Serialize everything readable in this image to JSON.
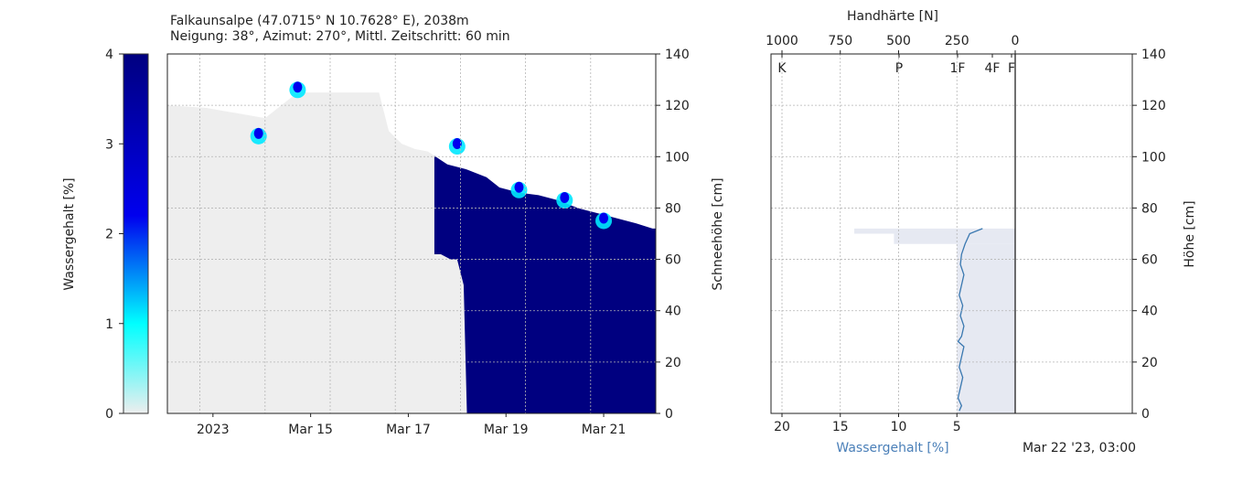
{
  "chart_data": [
    {
      "type": "heatmap",
      "title": "Falkaunsalpe (47.0715° N 10.7628° E), 2038m",
      "subtitle": "Neigung: 38°, Azimut: 270°, Mittl. Zeitschritt: 60 min",
      "ylabel": "Schneehöhe [cm]",
      "ylim": [
        0,
        140
      ],
      "yticks": [
        "0",
        "20",
        "40",
        "60",
        "80",
        "100",
        "120",
        "140"
      ],
      "xticks": [
        "2023",
        "Mar 15",
        "Mar 17",
        "Mar 19",
        "Mar 21"
      ],
      "grid": true,
      "colorbar": {
        "label": "Wassergehalt [%]",
        "range": [
          0,
          4
        ],
        "ticks": [
          "0",
          "1",
          "2",
          "3",
          "4"
        ],
        "colors": [
          "#eeeeee",
          "#00ffff",
          "#0000ee",
          "#000080"
        ]
      },
      "snow_height_profile": {
        "x_days": [
          0.0,
          0.6,
          1.5,
          2.0,
          3.15,
          3.25,
          3.4,
          3.6,
          3.8,
          4.0,
          4.3,
          4.6,
          4.9,
          5.1,
          5.4,
          5.7,
          6.0,
          6.3,
          6.6,
          6.9,
          7.2,
          7.45,
          7.5
        ],
        "height_cm": [
          120,
          119,
          115,
          125,
          125,
          125,
          110,
          105,
          103,
          102,
          97,
          95,
          92,
          88,
          86,
          85,
          83,
          80,
          78,
          76,
          74,
          72,
          72
        ]
      },
      "wet_region": {
        "x_days": [
          4.1,
          4.2,
          4.35,
          4.45,
          4.55,
          4.6,
          4.9,
          7.5
        ],
        "bottom_cm": [
          62,
          62,
          60,
          60,
          50,
          0,
          0,
          0
        ],
        "value": 4
      },
      "moist_spots": [
        {
          "x_days": 1.4,
          "height_cm": 108,
          "value": 2.5
        },
        {
          "x_days": 2.0,
          "height_cm": 126,
          "value": 2.2
        },
        {
          "x_days": 4.45,
          "height_cm": 104,
          "value": 1.8
        },
        {
          "x_days": 5.4,
          "height_cm": 87,
          "value": 1.6
        },
        {
          "x_days": 6.1,
          "height_cm": 83,
          "value": 1.6
        },
        {
          "x_days": 6.7,
          "height_cm": 75,
          "value": 1.4
        }
      ]
    },
    {
      "type": "line",
      "xlabel": "Wassergehalt [%]",
      "top_xlabel": "Handhärte [N]",
      "ylabel": "Höhe [cm]",
      "ylim": [
        0,
        140
      ],
      "xlim": [
        0,
        20
      ],
      "xticks": [
        "20",
        "15",
        "10",
        "5"
      ],
      "top_xticks": [
        "1000",
        "750",
        "500",
        "250",
        "0"
      ],
      "hardness_labels": [
        "K",
        "P",
        "1F",
        "4F",
        "F"
      ],
      "yticks": [
        "0",
        "20",
        "40",
        "60",
        "80",
        "100",
        "120",
        "140"
      ],
      "grid": true,
      "timestamp": "Mar 22 '23, 03:00",
      "series": [
        {
          "color": "#3a78b0",
          "y": [
            1,
            3,
            6,
            10,
            14,
            18,
            22,
            26,
            28,
            30,
            34,
            38,
            42,
            46,
            50,
            54,
            58,
            62,
            66,
            70,
            72
          ],
          "x": [
            4.8,
            4.6,
            4.9,
            4.7,
            4.5,
            4.8,
            4.6,
            4.4,
            4.9,
            4.6,
            4.4,
            4.7,
            4.5,
            4.8,
            4.6,
            4.4,
            4.7,
            4.6,
            4.3,
            3.9,
            2.8
          ]
        }
      ],
      "hardness_profile": {
        "layers": [
          {
            "bottom_cm": 70,
            "top_cm": 72,
            "hardness_N": 690
          },
          {
            "bottom_cm": 66,
            "top_cm": 70,
            "hardness_N": 520
          },
          {
            "bottom_cm": 0,
            "top_cm": 66,
            "hardness_N": 250
          }
        ]
      }
    }
  ]
}
